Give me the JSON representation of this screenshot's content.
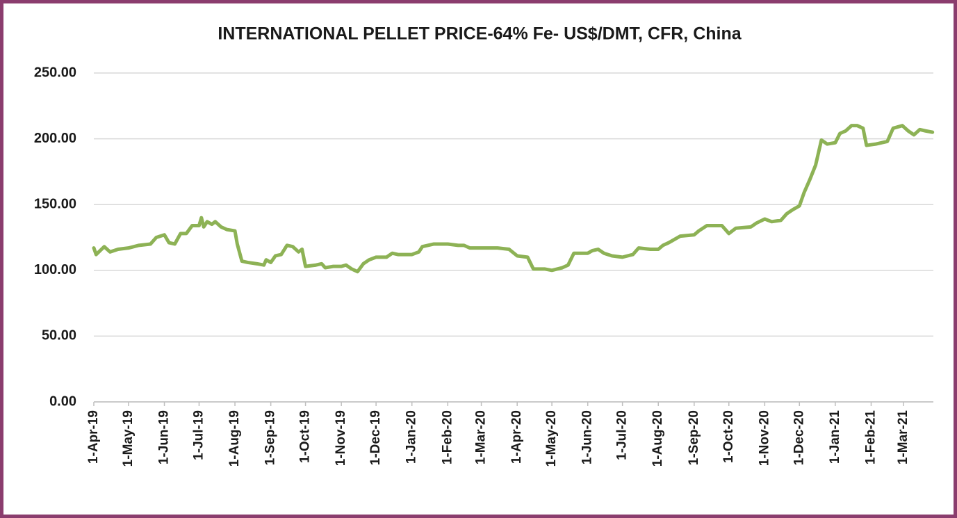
{
  "chart_data": {
    "type": "line",
    "title": "INTERNATIONAL PELLET PRICE-64% Fe- US$/DMT, CFR, China",
    "color": "#8db255",
    "grid": true,
    "ylim": [
      0,
      250
    ],
    "yticks": [
      {
        "value": 0,
        "label": "0.00"
      },
      {
        "value": 50,
        "label": "50.00"
      },
      {
        "value": 100,
        "label": "100.00"
      },
      {
        "value": 150,
        "label": "150.00"
      },
      {
        "value": 200,
        "label": "200.00"
      },
      {
        "value": 250,
        "label": "250.00"
      }
    ],
    "xlim": [
      "2019-04-01",
      "2021-03-31"
    ],
    "xticks": [
      {
        "value": "2019-04-01",
        "label": "1-Apr-19"
      },
      {
        "value": "2019-05-01",
        "label": "1-May-19"
      },
      {
        "value": "2019-06-01",
        "label": "1-Jun-19"
      },
      {
        "value": "2019-07-01",
        "label": "1-Jul-19"
      },
      {
        "value": "2019-08-01",
        "label": "1-Aug-19"
      },
      {
        "value": "2019-09-01",
        "label": "1-Sep-19"
      },
      {
        "value": "2019-10-01",
        "label": "1-Oct-19"
      },
      {
        "value": "2019-11-01",
        "label": "1-Nov-19"
      },
      {
        "value": "2019-12-01",
        "label": "1-Dec-19"
      },
      {
        "value": "2020-01-01",
        "label": "1-Jan-20"
      },
      {
        "value": "2020-02-01",
        "label": "1-Feb-20"
      },
      {
        "value": "2020-03-01",
        "label": "1-Mar-20"
      },
      {
        "value": "2020-04-01",
        "label": "1-Apr-20"
      },
      {
        "value": "2020-05-01",
        "label": "1-May-20"
      },
      {
        "value": "2020-06-01",
        "label": "1-Jun-20"
      },
      {
        "value": "2020-07-01",
        "label": "1-Jul-20"
      },
      {
        "value": "2020-08-01",
        "label": "1-Aug-20"
      },
      {
        "value": "2020-09-01",
        "label": "1-Sep-20"
      },
      {
        "value": "2020-10-01",
        "label": "1-Oct-20"
      },
      {
        "value": "2020-11-01",
        "label": "1-Nov-20"
      },
      {
        "value": "2020-12-01",
        "label": "1-Dec-20"
      },
      {
        "value": "2021-01-01",
        "label": "1-Jan-21"
      },
      {
        "value": "2021-02-01",
        "label": "1-Feb-21"
      },
      {
        "value": "2021-03-01",
        "label": "1-Mar-21"
      }
    ],
    "x": [
      "2019-04-01",
      "2019-04-03",
      "2019-04-10",
      "2019-04-15",
      "2019-04-22",
      "2019-05-01",
      "2019-05-10",
      "2019-05-20",
      "2019-05-25",
      "2019-06-01",
      "2019-06-05",
      "2019-06-10",
      "2019-06-15",
      "2019-06-20",
      "2019-06-25",
      "2019-07-01",
      "2019-07-03",
      "2019-07-05",
      "2019-07-08",
      "2019-07-12",
      "2019-07-15",
      "2019-07-20",
      "2019-07-25",
      "2019-08-01",
      "2019-08-03",
      "2019-08-07",
      "2019-08-12",
      "2019-08-20",
      "2019-08-26",
      "2019-08-28",
      "2019-09-01",
      "2019-09-05",
      "2019-09-10",
      "2019-09-15",
      "2019-09-20",
      "2019-09-25",
      "2019-09-28",
      "2019-10-01",
      "2019-10-10",
      "2019-10-15",
      "2019-10-18",
      "2019-10-25",
      "2019-11-01",
      "2019-11-05",
      "2019-11-10",
      "2019-11-15",
      "2019-11-20",
      "2019-11-25",
      "2019-12-01",
      "2019-12-10",
      "2019-12-15",
      "2019-12-20",
      "2020-01-01",
      "2020-01-07",
      "2020-01-10",
      "2020-01-15",
      "2020-01-20",
      "2020-02-01",
      "2020-02-10",
      "2020-02-15",
      "2020-02-20",
      "2020-03-01",
      "2020-03-15",
      "2020-03-25",
      "2020-04-01",
      "2020-04-10",
      "2020-04-15",
      "2020-04-25",
      "2020-05-01",
      "2020-05-10",
      "2020-05-15",
      "2020-05-20",
      "2020-06-01",
      "2020-06-05",
      "2020-06-10",
      "2020-06-15",
      "2020-06-22",
      "2020-07-01",
      "2020-07-10",
      "2020-07-15",
      "2020-07-25",
      "2020-08-01",
      "2020-08-05",
      "2020-08-10",
      "2020-08-20",
      "2020-09-01",
      "2020-09-05",
      "2020-09-12",
      "2020-09-25",
      "2020-10-01",
      "2020-10-07",
      "2020-10-20",
      "2020-10-25",
      "2020-11-01",
      "2020-11-07",
      "2020-11-15",
      "2020-11-20",
      "2020-11-25",
      "2020-12-01",
      "2020-12-05",
      "2020-12-10",
      "2020-12-15",
      "2020-12-20",
      "2020-12-25",
      "2021-01-01",
      "2021-01-05",
      "2021-01-10",
      "2021-01-15",
      "2021-01-20",
      "2021-01-25",
      "2021-01-28",
      "2021-02-05",
      "2021-02-10",
      "2021-02-15",
      "2021-02-20",
      "2021-02-28",
      "2021-03-05",
      "2021-03-10",
      "2021-03-15",
      "2021-03-20",
      "2021-03-26"
    ],
    "values": [
      117,
      112,
      118,
      114,
      116,
      117,
      119,
      120,
      125,
      127,
      121,
      120,
      128,
      128,
      134,
      134,
      140,
      133,
      137,
      135,
      137,
      133,
      131,
      130,
      120,
      107,
      106,
      105,
      104,
      108,
      106,
      111,
      112,
      119,
      118,
      114,
      116,
      103,
      104,
      105,
      102,
      103,
      103,
      104,
      101,
      99,
      105,
      108,
      110,
      110,
      113,
      112,
      112,
      114,
      118,
      119,
      120,
      120,
      119,
      119,
      117,
      117,
      117,
      116,
      111,
      110,
      101,
      101,
      100,
      102,
      104,
      113,
      113,
      115,
      116,
      113,
      111,
      110,
      112,
      117,
      116,
      116,
      119,
      121,
      126,
      127,
      130,
      134,
      134,
      128,
      132,
      133,
      136,
      139,
      137,
      138,
      143,
      146,
      149,
      159,
      169,
      180,
      199,
      196,
      197,
      204,
      206,
      210,
      210,
      208,
      195,
      196,
      197,
      198,
      208,
      210,
      206,
      203,
      207,
      206,
      205
    ]
  }
}
